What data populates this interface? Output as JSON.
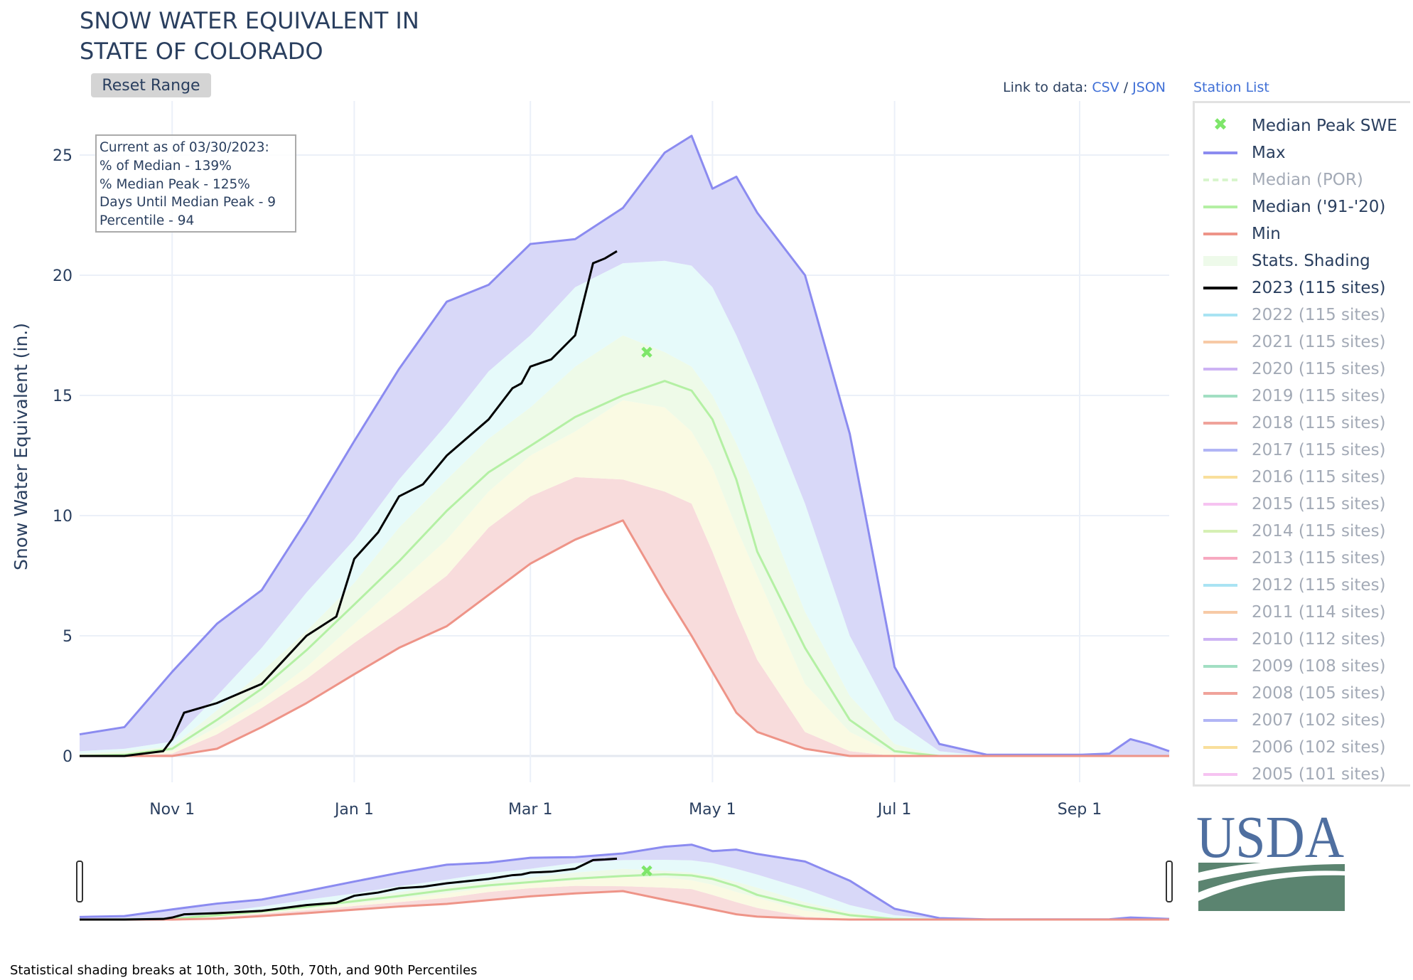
{
  "title_lines": [
    "SNOW WATER EQUIVALENT IN",
    "STATE OF COLORADO"
  ],
  "reset_button": "Reset Range",
  "links": {
    "prefix": "Link to data:",
    "csv": "CSV",
    "sep": "/",
    "json": "JSON",
    "station_list": "Station List"
  },
  "annotation": [
    "Current as of 03/30/2023:",
    "% of Median - 139%",
    "% Median Peak - 125%",
    "Days Until Median Peak - 9",
    "Percentile - 94"
  ],
  "footnote": "Statistical shading breaks at 10th, 30th, 50th, 70th, and 90th Percentiles",
  "logo_text": "USDA",
  "legend": [
    {
      "label": "Median Peak SWE",
      "color": "#7ee66a",
      "kind": "x",
      "active": true
    },
    {
      "label": "Max",
      "color": "#8b8bf0",
      "kind": "line",
      "active": true
    },
    {
      "label": "Median (POR)",
      "color": "#d8f5cc",
      "kind": "dash",
      "active": false
    },
    {
      "label": "Median ('91-'20)",
      "color": "#b4f0a4",
      "kind": "line",
      "active": true
    },
    {
      "label": "Min",
      "color": "#ee9488",
      "kind": "line",
      "active": true
    },
    {
      "label": "Stats. Shading",
      "color": "#eefaea",
      "kind": "box",
      "active": true
    },
    {
      "label": "2023 (115 sites)",
      "color": "#000000",
      "kind": "line",
      "active": true
    },
    {
      "label": "2022 (115 sites)",
      "color": "#a9e3f3",
      "kind": "line",
      "active": false
    },
    {
      "label": "2021 (115 sites)",
      "color": "#f7caa6",
      "kind": "line",
      "active": false
    },
    {
      "label": "2020 (115 sites)",
      "color": "#cdb3f4",
      "kind": "line",
      "active": false
    },
    {
      "label": "2019 (115 sites)",
      "color": "#a2dfc3",
      "kind": "line",
      "active": false
    },
    {
      "label": "2018 (115 sites)",
      "color": "#f0a39a",
      "kind": "line",
      "active": false
    },
    {
      "label": "2017 (115 sites)",
      "color": "#b1b5f5",
      "kind": "line",
      "active": false
    },
    {
      "label": "2016 (115 sites)",
      "color": "#f9df9c",
      "kind": "line",
      "active": false
    },
    {
      "label": "2015 (115 sites)",
      "color": "#f6c3f1",
      "kind": "line",
      "active": false
    },
    {
      "label": "2014 (115 sites)",
      "color": "#d6f0b4",
      "kind": "line",
      "active": false
    },
    {
      "label": "2013 (115 sites)",
      "color": "#f7a9c0",
      "kind": "line",
      "active": false
    },
    {
      "label": "2012 (115 sites)",
      "color": "#a9e3f3",
      "kind": "line",
      "active": false
    },
    {
      "label": "2011 (114 sites)",
      "color": "#f7caa6",
      "kind": "line",
      "active": false
    },
    {
      "label": "2010 (112 sites)",
      "color": "#cdb3f4",
      "kind": "line",
      "active": false
    },
    {
      "label": "2009 (108 sites)",
      "color": "#a2dfc3",
      "kind": "line",
      "active": false
    },
    {
      "label": "2008 (105 sites)",
      "color": "#f0a39a",
      "kind": "line",
      "active": false
    },
    {
      "label": "2007 (102 sites)",
      "color": "#b1b5f5",
      "kind": "line",
      "active": false
    },
    {
      "label": "2006 (102 sites)",
      "color": "#f9df9c",
      "kind": "line",
      "active": false
    },
    {
      "label": "2005 (101 sites)",
      "color": "#f6c3f1",
      "kind": "line",
      "active": false
    }
  ],
  "chart_data": {
    "type": "area",
    "title": "SNOW WATER EQUIVALENT IN STATE OF COLORADO",
    "xlabel": "",
    "ylabel": "Snow Water Equivalent (in.)",
    "x_unit": "days since Oct 1 (water year)",
    "xlim": [
      0,
      365
    ],
    "ylim": [
      -1.2,
      27
    ],
    "yticks": [
      0,
      5,
      10,
      15,
      20,
      25
    ],
    "xticks": [
      {
        "day": 31,
        "label": "Nov  1"
      },
      {
        "day": 92,
        "label": "Jan  1"
      },
      {
        "day": 151,
        "label": "Mar  1"
      },
      {
        "day": 212,
        "label": "May  1"
      },
      {
        "day": 273,
        "label": "Jul  1"
      },
      {
        "day": 335,
        "label": "Sep  1"
      }
    ],
    "grid": true,
    "x": [
      0,
      15,
      31,
      46,
      61,
      76,
      92,
      107,
      123,
      137,
      151,
      166,
      182,
      196,
      205,
      212,
      220,
      227,
      243,
      258,
      273,
      288,
      304,
      335,
      345,
      352,
      358,
      365
    ],
    "series": [
      {
        "name": "Max",
        "color": "#8b8bf0",
        "values": [
          0.9,
          1.2,
          3.5,
          5.5,
          6.9,
          9.8,
          13.1,
          16.1,
          18.9,
          19.6,
          21.3,
          21.5,
          22.8,
          25.1,
          25.8,
          23.6,
          24.1,
          22.6,
          20.0,
          13.4,
          3.7,
          0.5,
          0.05,
          0.05,
          0.1,
          0.7,
          0.5,
          0.2
        ]
      },
      {
        "name": "p90",
        "values": [
          0.2,
          0.3,
          0.6,
          2.5,
          4.5,
          6.8,
          9.0,
          11.5,
          13.8,
          16.0,
          17.5,
          19.5,
          20.5,
          20.6,
          20.4,
          19.5,
          17.5,
          15.5,
          10.5,
          5.0,
          1.5,
          0.2,
          0,
          0,
          0,
          0,
          0,
          0
        ]
      },
      {
        "name": "p70",
        "values": [
          0.1,
          0.2,
          0.4,
          1.9,
          3.5,
          5.2,
          7.2,
          9.5,
          11.5,
          13.2,
          14.5,
          16.2,
          17.5,
          16.8,
          16.2,
          15.0,
          13.0,
          11.0,
          6.0,
          2.5,
          0.5,
          0,
          0,
          0,
          0,
          0,
          0,
          0
        ]
      },
      {
        "name": "Median ('91-'20)",
        "color": "#b4f0a4",
        "values": [
          0,
          0.05,
          0.3,
          1.5,
          2.8,
          4.4,
          6.3,
          8.1,
          10.2,
          11.8,
          12.9,
          14.1,
          15.0,
          15.6,
          15.2,
          14.0,
          11.5,
          8.5,
          4.5,
          1.5,
          0.2,
          0,
          0,
          0,
          0,
          0,
          0,
          0
        ]
      },
      {
        "name": "p30",
        "values": [
          0,
          0.05,
          0.2,
          1.2,
          2.3,
          3.7,
          5.5,
          7.2,
          9.0,
          11.0,
          12.5,
          13.5,
          14.8,
          14.5,
          13.5,
          12.0,
          9.5,
          7.5,
          3.0,
          1.0,
          0.1,
          0,
          0,
          0,
          0,
          0,
          0,
          0
        ]
      },
      {
        "name": "p10",
        "values": [
          0,
          0,
          0.1,
          0.9,
          2.0,
          3.2,
          4.7,
          6.0,
          7.5,
          9.5,
          10.8,
          11.6,
          11.5,
          11.0,
          10.5,
          8.5,
          6.0,
          4.0,
          1.0,
          0.2,
          0,
          0,
          0,
          0,
          0,
          0,
          0,
          0
        ]
      },
      {
        "name": "Min",
        "color": "#ee9488",
        "values": [
          0,
          0,
          0,
          0.3,
          1.2,
          2.2,
          3.4,
          4.5,
          5.4,
          6.7,
          8.0,
          9.0,
          9.8,
          6.8,
          5.0,
          3.5,
          1.8,
          1.0,
          0.3,
          0,
          0,
          0,
          0,
          0,
          0,
          0,
          0,
          0
        ]
      }
    ],
    "current_year": {
      "name": "2023 (115 sites)",
      "color": "#000000",
      "x": [
        0,
        15,
        28,
        31,
        35,
        46,
        61,
        76,
        86,
        92,
        100,
        107,
        115,
        123,
        137,
        145,
        148,
        151,
        158,
        166,
        172,
        176,
        180
      ],
      "values": [
        0,
        0,
        0.2,
        0.7,
        1.8,
        2.2,
        3.0,
        5.0,
        5.8,
        8.2,
        9.3,
        10.8,
        11.3,
        12.5,
        14.0,
        15.3,
        15.5,
        16.2,
        16.5,
        17.5,
        20.5,
        20.7,
        21.0
      ]
    },
    "median_peak": {
      "name": "Median Peak SWE",
      "x": 190,
      "value": 16.8
    },
    "shading_bands": [
      {
        "from": "Min",
        "to": "p10",
        "color": "#f8dcdc"
      },
      {
        "from": "p10",
        "to": "p30",
        "color": "#fafae3"
      },
      {
        "from": "p30",
        "to": "p70",
        "color": "#eefae8"
      },
      {
        "from": "p70",
        "to": "p90",
        "color": "#e6fafa"
      },
      {
        "from": "p90",
        "to": "Max",
        "color": "#d8d8f8"
      }
    ],
    "legend_placement": "right"
  }
}
